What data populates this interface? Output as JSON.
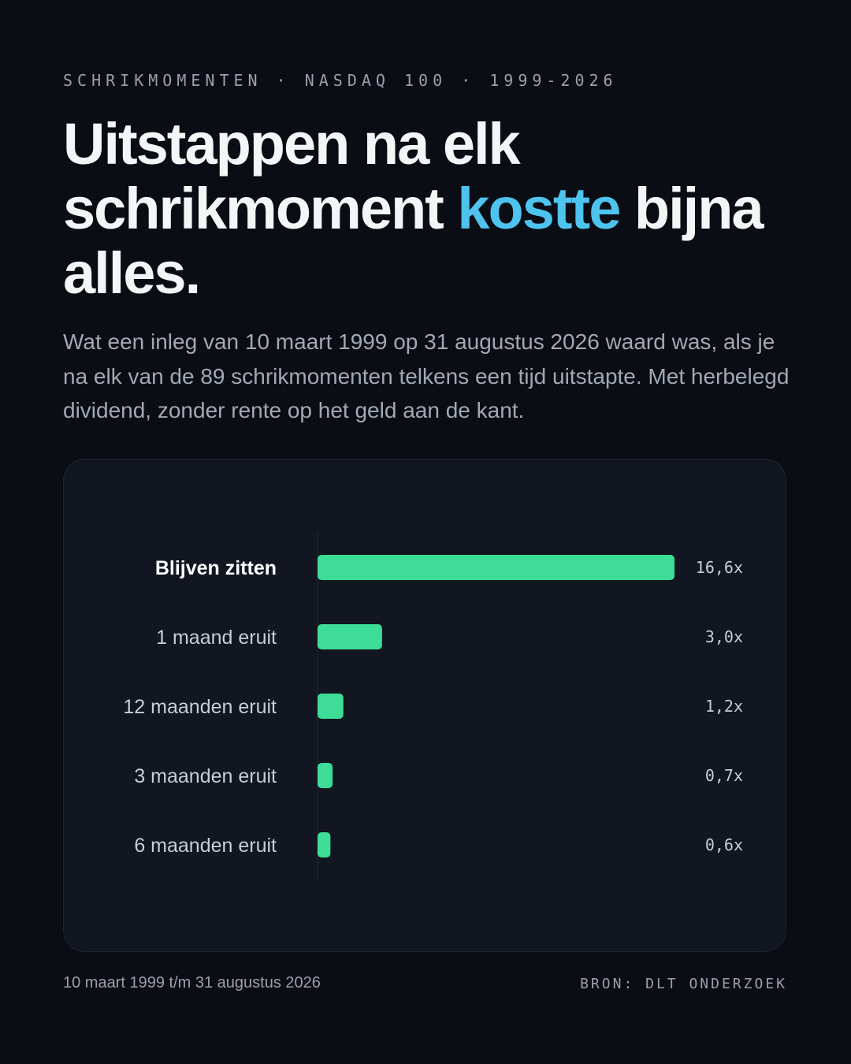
{
  "header": {
    "eyebrow": "SCHRIKMOMENTEN · NASDAQ 100 · 1999-2026",
    "title_part1": "Uitstappen na elk schrikmoment ",
    "title_accent": "kostte",
    "title_part2": " bijna alles.",
    "subtitle": "Wat een inleg van 10 maart 1999 op 31 augustus 2026 waard was, als je na elk van de 89 schrikmomenten telkens een tijd uitstapte. Met herbelegd dividend, zonder rente op het geld aan de kant."
  },
  "colors": {
    "background": "#0a0d14",
    "card": "#111620",
    "bar": "#3ddc97",
    "accent": "#4ec3ee"
  },
  "chart_data": {
    "type": "bar",
    "orientation": "horizontal",
    "title": "",
    "xlabel": "",
    "ylabel": "",
    "categories": [
      "Blijven zitten",
      "1 maand eruit",
      "12 maanden eruit",
      "3 maanden eruit",
      "6 maanden eruit"
    ],
    "values": [
      16.6,
      3.0,
      1.2,
      0.7,
      0.6
    ],
    "value_labels": [
      "16,6x",
      "3,0x",
      "1,2x",
      "0,7x",
      "0,6x"
    ],
    "highlight_index": 0,
    "xlim": [
      0,
      16.6
    ],
    "grid": false,
    "legend": "none"
  },
  "footer": {
    "period": "10 maart 1999 t/m 31 augustus 2026",
    "source": "BRON: DLT ONDERZOEK"
  }
}
